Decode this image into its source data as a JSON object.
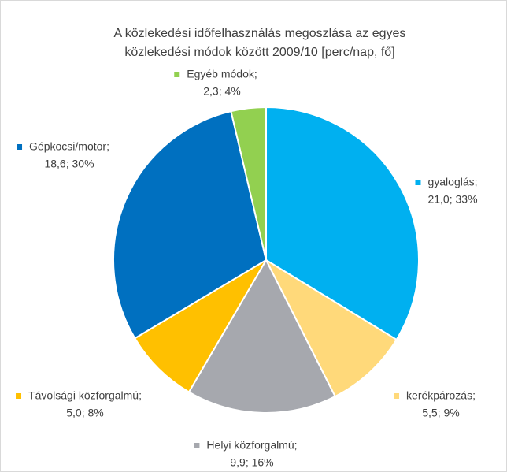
{
  "chart_data": {
    "type": "pie",
    "title": [
      "A közlekedési időfelhasználás megoszlása az egyes",
      "közlekedési módok között 2009/10 [perc/nap, fő]"
    ],
    "categories": [
      "gyaloglás;",
      "kerékpározás;",
      "Helyi közforgalmú;",
      "Távolsági közforgalmú;",
      "Gépkocsi/motor;",
      "Egyéb módok;"
    ],
    "values": [
      21.0,
      5.5,
      9.9,
      5.0,
      18.6,
      2.3
    ],
    "value_labels": [
      "21,0; 33%",
      "5,5; 9%",
      "9,9; 16%",
      "5,0; 8%",
      "18,6; 30%",
      "2,3; 4%"
    ],
    "colors": [
      "#00b0f0",
      "#ffd97a",
      "#a6a8ae",
      "#ffc000",
      "#0070c0",
      "#92d050"
    ]
  }
}
